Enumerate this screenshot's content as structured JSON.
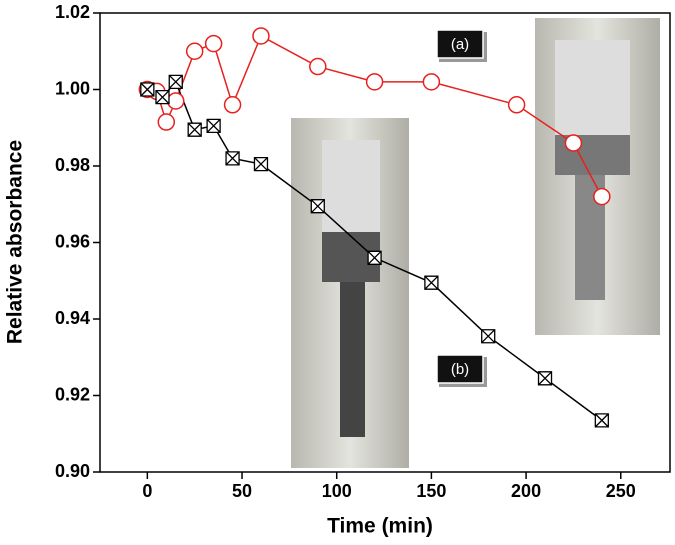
{
  "chart_data": {
    "type": "line",
    "xlabel": "Time (min)",
    "ylabel": "Relative absorbance",
    "xlim": [
      -25,
      276
    ],
    "ylim": [
      0.9,
      1.02
    ],
    "xticks": [
      0,
      50,
      100,
      150,
      200,
      250
    ],
    "yticks": [
      {
        "value": 0.9,
        "label": "0.90"
      },
      {
        "value": 0.92,
        "label": "0.92"
      },
      {
        "value": 0.94,
        "label": "0.94"
      },
      {
        "value": 0.96,
        "label": "0.96"
      },
      {
        "value": 0.98,
        "label": "0.98"
      },
      {
        "value": 1.0,
        "label": "1.00"
      },
      {
        "value": 1.02,
        "label": "1.02"
      }
    ],
    "series": [
      {
        "name": "(a)",
        "color": "#e8201e",
        "marker": "circle",
        "x": [
          0,
          5,
          10,
          15,
          25,
          35,
          45,
          60,
          90,
          120,
          150,
          195,
          225,
          240
        ],
        "values": [
          1.0,
          0.9995,
          0.9915,
          0.997,
          1.01,
          1.012,
          0.996,
          1.014,
          1.006,
          1.002,
          1.002,
          0.996,
          0.986,
          0.972
        ]
      },
      {
        "name": "(b)",
        "color": "#000000",
        "marker": "boxed-x",
        "x": [
          0,
          8,
          15,
          25,
          35,
          45,
          60,
          90,
          120,
          150,
          180,
          210,
          240
        ],
        "values": [
          1.0,
          0.998,
          1.002,
          0.9895,
          0.9905,
          0.982,
          0.9805,
          0.9695,
          0.956,
          0.9495,
          0.9355,
          0.9245,
          0.9135
        ]
      }
    ]
  }
}
